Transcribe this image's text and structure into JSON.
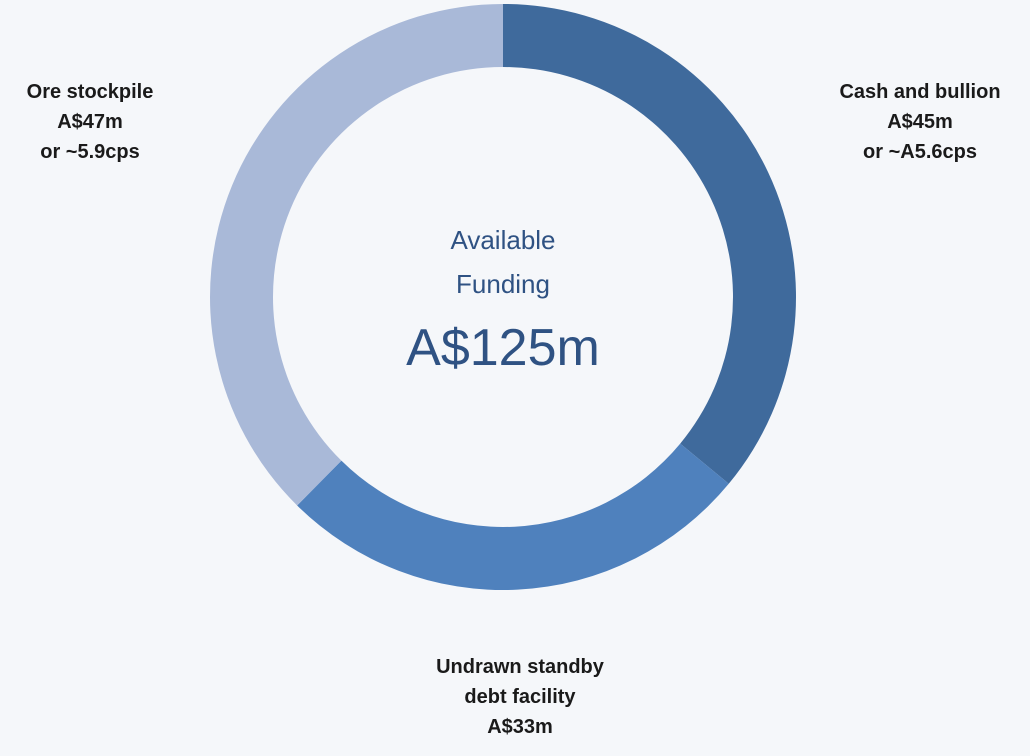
{
  "chart_data": {
    "type": "donut",
    "categories": [
      "Cash and bullion",
      "Undrawn standby debt facility",
      "Ore stockpile"
    ],
    "values": [
      45,
      33,
      47
    ],
    "value_labels": [
      "A$45m",
      "A$33m",
      "A$47m"
    ],
    "notes": [
      "or ~A5.6cps",
      null,
      "or ~5.9cps"
    ],
    "colors": [
      "#3f6a9c",
      "#4f81bd",
      "#a9b9d8"
    ],
    "center_label": "Available Funding",
    "total": 125,
    "total_label": "A$125m"
  }
}
